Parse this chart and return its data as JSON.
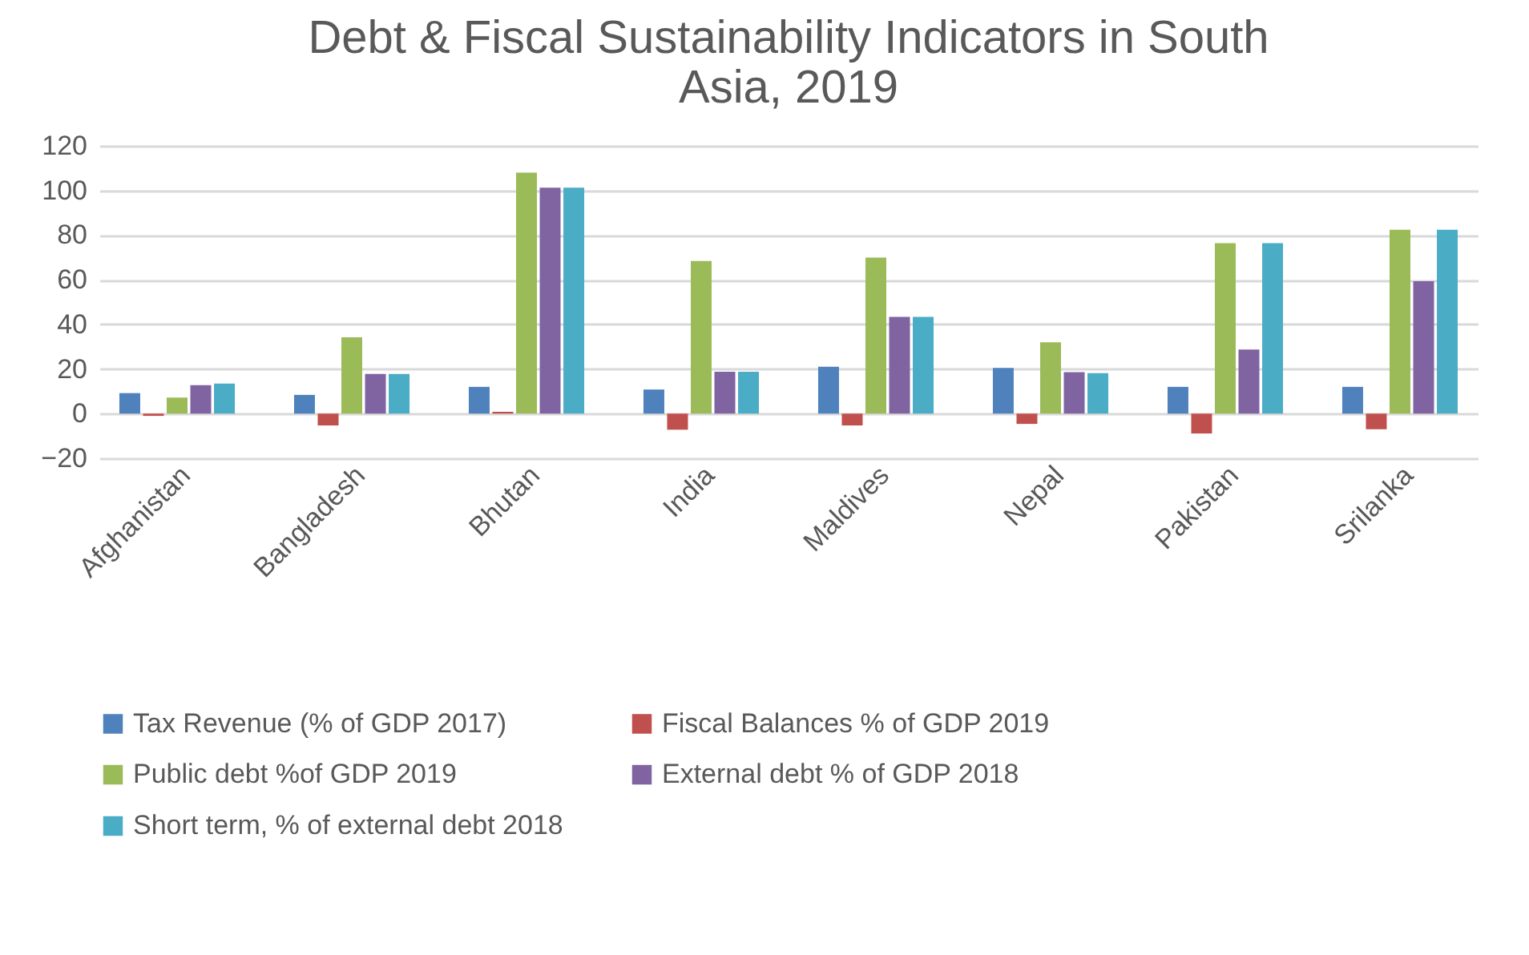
{
  "chart_data": {
    "type": "bar",
    "title": "Debt & Fiscal Sustainability Indicators in South Asia, 2019",
    "categories": [
      "Afghanistan",
      "Bangladesh",
      "Bhutan",
      "India",
      "Maldives",
      "Nepal",
      "Pakistan",
      "Srilanka"
    ],
    "series": [
      {
        "name": "Tax Revenue (% of GDP 2017)",
        "color": "#4f81bd",
        "values": [
          9.2,
          8.4,
          12,
          10.8,
          21,
          20.5,
          12,
          12
        ]
      },
      {
        "name": "Fiscal Balances % of GDP 2019",
        "color": "#c0504d",
        "values": [
          -1,
          -5.3,
          0.8,
          -7.2,
          -5.3,
          -4.6,
          -8.9,
          -7
        ]
      },
      {
        "name": "Public debt %of GDP 2019",
        "color": "#9bbb59",
        "values": [
          7.2,
          34.2,
          108,
          68.4,
          69.9,
          32,
          76.4,
          82.4
        ]
      },
      {
        "name": "External debt % of GDP 2018",
        "color": "#8064a2",
        "values": [
          12.8,
          17.8,
          101.2,
          18.8,
          43.4,
          18.6,
          28.7,
          59.3
        ]
      },
      {
        "name": "Short term, % of external debt 2018",
        "color": "#4bacc6",
        "values": [
          13.5,
          17.8,
          101.2,
          18.8,
          43.4,
          18.1,
          76.4,
          82.4
        ]
      }
    ],
    "ylim": [
      -20,
      120
    ],
    "yticks": [
      -20,
      0,
      20,
      40,
      60,
      80,
      100,
      120
    ],
    "grid": "y",
    "legend": "bottom"
  }
}
